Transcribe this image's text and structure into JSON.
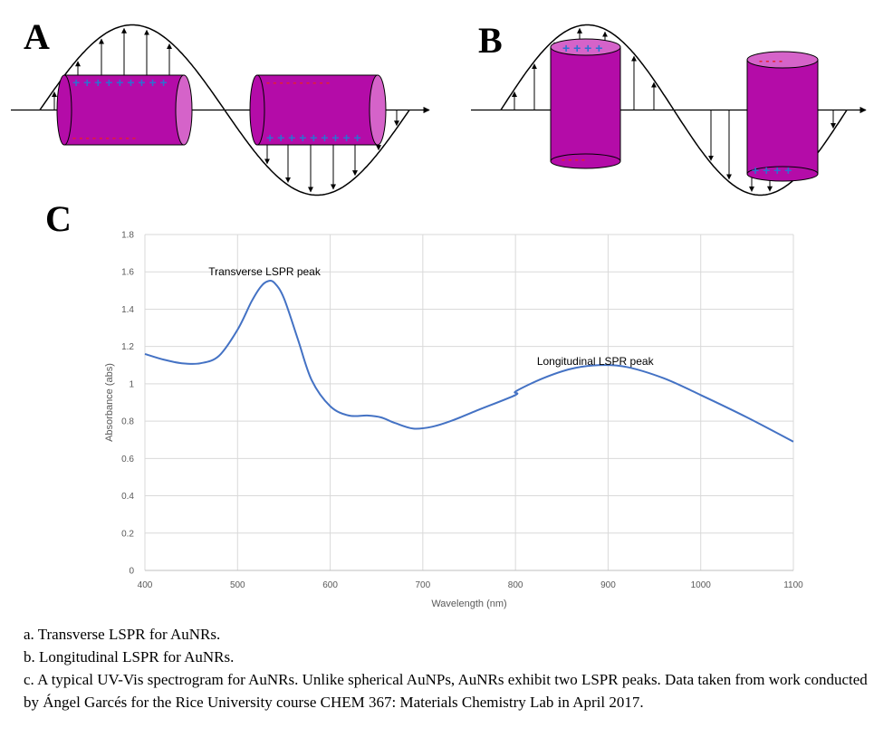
{
  "panels": {
    "a": {
      "letter": "A",
      "top_charge": "+ + + + + + + + +",
      "bottom_charge": "- - - - - - - - - -",
      "right_top_charge": "- - - - - - - - - -",
      "right_bottom_charge": "+ + + + + + + + +"
    },
    "b": {
      "letter": "B",
      "left_top_charge": "+ + + +",
      "left_bottom_charge": "- - - -",
      "right_top_charge": "- - - -",
      "right_bottom_charge": "+ + + +"
    },
    "c": {
      "letter": "C"
    }
  },
  "colors": {
    "rod_body": "#b40ca8",
    "rod_cap": "#d563c9",
    "line": "#4472c4",
    "plus": "#2f6fd0",
    "minus": "#e8202a"
  },
  "chart_data": {
    "type": "line",
    "xlabel": "Wavelength (nm)",
    "ylabel": "Absorbance (abs)",
    "xlim": [
      400,
      1100
    ],
    "ylim": [
      0,
      1.8
    ],
    "x_ticks": [
      "400",
      "500",
      "600",
      "700",
      "800",
      "900",
      "1000",
      "1100"
    ],
    "y_ticks": [
      "0",
      "0.2",
      "0.4",
      "0.6",
      "0.8",
      "1",
      "1.2",
      "1.4",
      "1.6",
      "1.8"
    ],
    "grid": true,
    "series": [
      {
        "x": [
          400,
          420,
          440,
          460,
          480,
          500,
          515,
          525,
          533,
          540,
          550,
          565,
          580,
          600,
          620,
          640,
          655,
          670,
          690,
          710,
          730,
          760,
          800,
          800.5,
          830,
          860,
          890,
          920,
          960,
          1000,
          1050,
          1100
        ],
        "y": [
          1.16,
          1.13,
          1.11,
          1.11,
          1.15,
          1.29,
          1.44,
          1.52,
          1.55,
          1.54,
          1.46,
          1.24,
          1.02,
          0.88,
          0.83,
          0.83,
          0.82,
          0.79,
          0.76,
          0.77,
          0.8,
          0.86,
          0.94,
          0.96,
          1.03,
          1.08,
          1.1,
          1.09,
          1.03,
          0.94,
          0.82,
          0.69
        ]
      }
    ],
    "annotations": [
      {
        "text": "Transverse LSPR peak",
        "x": 533,
        "y": 1.6
      },
      {
        "text": "Longitudinal LSPR peak",
        "x": 890,
        "y": 1.12
      }
    ]
  },
  "captions": [
    "a. Transverse LSPR for AuNRs.",
    "b. Longitudinal LSPR for AuNRs.",
    "c. A typical UV-Vis spectrogram for AuNRs. Unlike spherical AuNPs, AuNRs exhibit two LSPR peaks. Data taken from work conducted by Ángel Garcés for the Rice University course CHEM 367: Materials Chemistry Lab in April 2017."
  ]
}
